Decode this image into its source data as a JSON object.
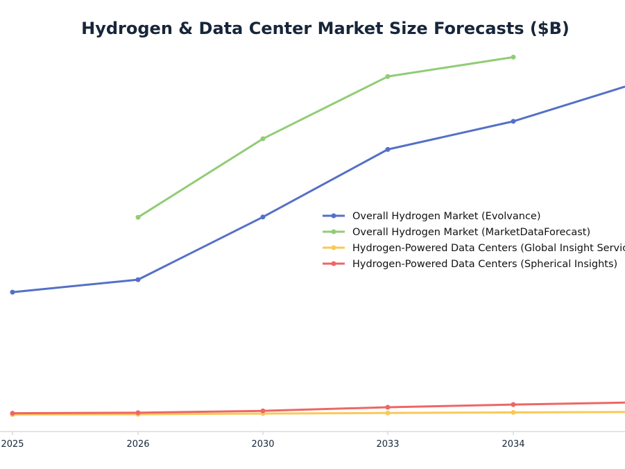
{
  "chart_data": {
    "type": "line",
    "title": "Hydrogen & Data Center Market Size Forecasts ($B)",
    "xlabel": "",
    "ylabel": "",
    "categories": [
      "2025",
      "2026",
      "2030",
      "2033",
      "2034",
      ""
    ],
    "ylim": [
      0,
      280
    ],
    "grid": false,
    "legend_position": "center-right",
    "series": [
      {
        "name": "Overall Hydrogen Market (Evolvance)",
        "color": "#5470c6",
        "values": [
          99.2,
          108.1,
          152.7,
          200.8,
          220.8,
          245.5
        ]
      },
      {
        "name": "Overall Hydrogen Market (MarketDataForecast)",
        "color": "#91cc75",
        "values": [
          null,
          152.5,
          208.4,
          252.7,
          266.5,
          null
        ]
      },
      {
        "name": "Hydrogen-Powered Data Centers (Global Insight Services)",
        "color": "#fac858",
        "values": [
          12.1,
          12.3,
          12.8,
          13.2,
          13.6,
          13.9
        ]
      },
      {
        "name": "Hydrogen-Powered Data Centers (Spherical Insights)",
        "color": "#ee6666",
        "values": [
          13.0,
          13.4,
          14.7,
          17.3,
          19.2,
          20.6
        ]
      }
    ]
  }
}
